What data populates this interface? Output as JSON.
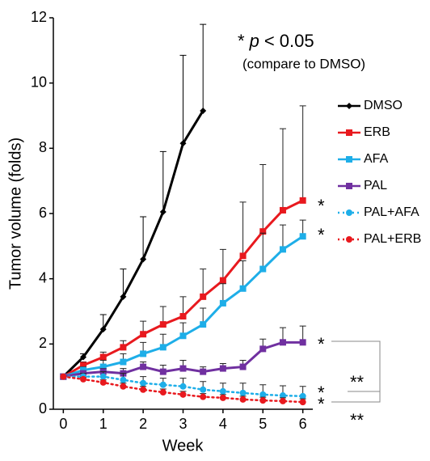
{
  "chart_data": {
    "type": "line",
    "x_label": "Week",
    "y_label": "Tumor volume (folds)",
    "note_parts": [
      "*",
      "p",
      "< 0.05"
    ],
    "note_sub": "(compare to DMSO)",
    "xlim": [
      -0.25,
      6.25
    ],
    "ylim": [
      0,
      12
    ],
    "xticks": [
      0,
      1,
      2,
      3,
      4,
      5,
      6
    ],
    "yticks": [
      0,
      2,
      4,
      6,
      8,
      10,
      12
    ],
    "x": [
      0,
      0.5,
      1,
      1.5,
      2,
      2.5,
      3,
      3.5,
      4,
      4.5,
      5,
      5.5,
      6
    ],
    "series": [
      {
        "name": "DMSO",
        "color": "#000000",
        "marker": "diamond",
        "dash": false,
        "values": [
          1,
          1.6,
          2.45,
          3.45,
          4.6,
          6.05,
          8.15,
          9.15,
          null,
          null,
          null,
          null,
          null
        ],
        "errors": [
          null,
          0.1,
          0.45,
          0.85,
          1.3,
          1.85,
          2.7,
          2.65,
          null,
          null,
          null,
          null,
          null
        ]
      },
      {
        "name": "ERB",
        "color": "#e8191e",
        "marker": "square",
        "dash": false,
        "values": [
          1,
          1.35,
          1.6,
          1.9,
          2.3,
          2.6,
          2.85,
          3.45,
          3.95,
          4.7,
          5.45,
          6.1,
          6.4
        ],
        "errors": [
          null,
          0.1,
          0.15,
          0.2,
          0.4,
          0.55,
          0.6,
          0.85,
          0.95,
          1.65,
          2.05,
          2.5,
          2.9
        ]
      },
      {
        "name": "AFA",
        "color": "#1eaee8",
        "marker": "square",
        "dash": false,
        "values": [
          1,
          1.2,
          1.3,
          1.45,
          1.7,
          1.9,
          2.25,
          2.6,
          3.25,
          3.7,
          4.3,
          4.9,
          5.3
        ],
        "errors": [
          null,
          0.1,
          0.2,
          0.25,
          0.35,
          0.4,
          0.4,
          0.5,
          0.6,
          0.85,
          1.1,
          0.75,
          0.5
        ]
      },
      {
        "name": "PAL",
        "color": "#7030a0",
        "marker": "square",
        "dash": false,
        "values": [
          1,
          1.1,
          1.15,
          1.1,
          1.3,
          1.15,
          1.25,
          1.15,
          1.25,
          1.3,
          1.85,
          2.05,
          2.05
        ],
        "errors": [
          null,
          0.05,
          0.1,
          0.15,
          0.15,
          0.2,
          0.25,
          0.15,
          0.15,
          0.2,
          0.3,
          0.45,
          0.5
        ]
      },
      {
        "name": "PAL+AFA",
        "color": "#1eaee8",
        "marker": "circle",
        "dash": true,
        "values": [
          1,
          1.0,
          1.0,
          0.9,
          0.8,
          0.75,
          0.7,
          0.6,
          0.55,
          0.5,
          0.45,
          0.42,
          0.4
        ],
        "errors": [
          null,
          0.1,
          0.15,
          0.2,
          0.2,
          0.2,
          0.25,
          0.25,
          0.25,
          0.3,
          0.3,
          0.3,
          0.3
        ]
      },
      {
        "name": "PAL+ERB",
        "color": "#e8191e",
        "marker": "circle",
        "dash": true,
        "values": [
          1,
          0.92,
          0.82,
          0.7,
          0.6,
          0.52,
          0.45,
          0.38,
          0.35,
          0.3,
          0.27,
          0.25,
          0.22
        ],
        "errors": [
          null,
          0.05,
          0.08,
          0.1,
          0.1,
          0.1,
          0.1,
          0.1,
          0.1,
          0.1,
          0.1,
          0.1,
          0.1
        ]
      }
    ],
    "series_stars": [
      "*",
      "*",
      "*",
      "*",
      "*"
    ],
    "pair_stars": [
      "**",
      "**"
    ]
  }
}
